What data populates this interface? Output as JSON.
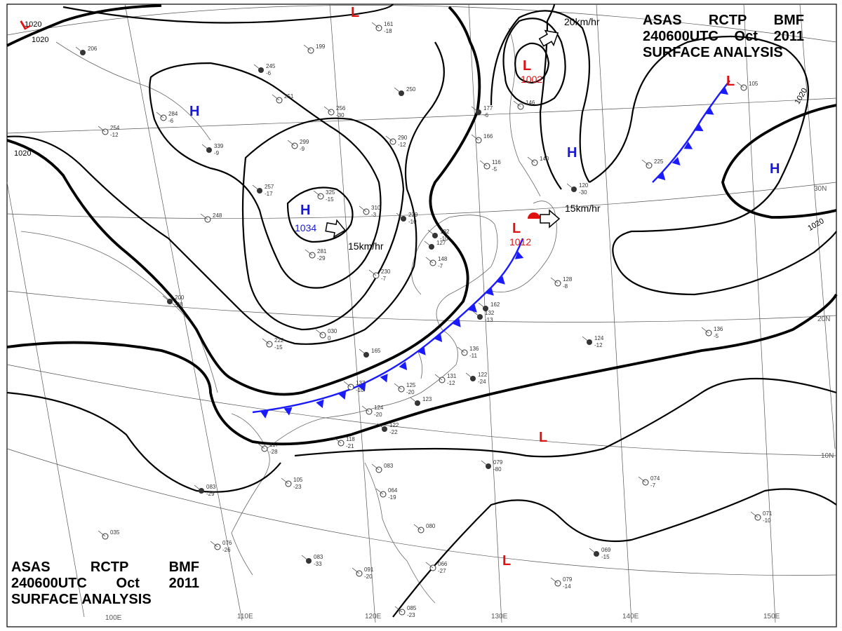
{
  "header": {
    "line1": [
      "ASAS",
      "RCTP",
      "BMF"
    ],
    "line2": [
      "240600UTC",
      "Oct",
      "2011"
    ],
    "line3": "SURFACE ANALYSIS"
  },
  "colors": {
    "high": "#1a1ad6",
    "low": "#e01010",
    "front": "#1a1aff",
    "isobar": "#000000"
  },
  "latitude_labels": [
    "30N",
    "20N",
    "10N"
  ],
  "longitude_labels": [
    "100E",
    "110E",
    "120E",
    "130E",
    "140E",
    "150E"
  ],
  "isobar_labels": [
    "1020",
    "1020",
    "1020",
    "1020",
    "1020"
  ],
  "highs": [
    {
      "label": "H",
      "value": ""
    },
    {
      "label": "H",
      "value": "1034"
    },
    {
      "label": "H",
      "value": ""
    },
    {
      "label": "H",
      "value": ""
    }
  ],
  "lows": [
    {
      "label": "L",
      "value": ""
    },
    {
      "label": "L",
      "value": ""
    },
    {
      "label": "L",
      "value": "1002"
    },
    {
      "label": "L",
      "value": "1012"
    },
    {
      "label": "L",
      "value": ""
    },
    {
      "label": "L",
      "value": ""
    },
    {
      "label": "L",
      "value": ""
    }
  ],
  "motions": [
    "15km/hr",
    "20km/hr",
    "15km/hr"
  ],
  "stations": [
    {
      "t": "206",
      "d": ""
    },
    {
      "t": "199",
      "d": ""
    },
    {
      "t": "161",
      "d": "-18"
    },
    {
      "t": "245",
      "d": "-6"
    },
    {
      "t": "284",
      "d": "-6"
    },
    {
      "t": "251",
      "d": ""
    },
    {
      "t": "250",
      "d": ""
    },
    {
      "t": "256",
      "d": "-30"
    },
    {
      "t": "254",
      "d": "-12"
    },
    {
      "t": "339",
      "d": "-9"
    },
    {
      "t": "299",
      "d": "-9"
    },
    {
      "t": "290",
      "d": "-12"
    },
    {
      "t": "257",
      "d": "-17"
    },
    {
      "t": "325",
      "d": "-15"
    },
    {
      "t": "310",
      "d": "-3"
    },
    {
      "t": "229",
      "d": "-10"
    },
    {
      "t": "248",
      "d": ""
    },
    {
      "t": "281",
      "d": "-29"
    },
    {
      "t": "182",
      "d": "-10"
    },
    {
      "t": "148",
      "d": "-7"
    },
    {
      "t": "230",
      "d": "-7"
    },
    {
      "t": "200",
      "d": "-28"
    },
    {
      "t": "030",
      "d": "0"
    },
    {
      "t": "222",
      "d": "-15"
    },
    {
      "t": "165",
      "d": ""
    },
    {
      "t": "136",
      "d": "-11"
    },
    {
      "t": "131",
      "d": "-12"
    },
    {
      "t": "122",
      "d": "-24"
    },
    {
      "t": "137",
      "d": "-10"
    },
    {
      "t": "125",
      "d": "-20"
    },
    {
      "t": "123",
      "d": ""
    },
    {
      "t": "117",
      "d": "-28"
    },
    {
      "t": "118",
      "d": "-21"
    },
    {
      "t": "122",
      "d": "-22"
    },
    {
      "t": "124",
      "d": "-20"
    },
    {
      "t": "105",
      "d": "-23"
    },
    {
      "t": "083",
      "d": "-29"
    },
    {
      "t": "083",
      "d": ""
    },
    {
      "t": "064",
      "d": "-19"
    },
    {
      "t": "079",
      "d": "-80"
    },
    {
      "t": "074",
      "d": "-7"
    },
    {
      "t": "076",
      "d": "-26"
    },
    {
      "t": "083",
      "d": "-33"
    },
    {
      "t": "091",
      "d": "-20"
    },
    {
      "t": "066",
      "d": "-27"
    },
    {
      "t": "069",
      "d": "-15"
    },
    {
      "t": "079",
      "d": "-14"
    },
    {
      "t": "071",
      "d": "-10"
    },
    {
      "t": "124",
      "d": "-12"
    },
    {
      "t": "136",
      "d": "-5"
    },
    {
      "t": "128",
      "d": "-8"
    },
    {
      "t": "162",
      "d": ""
    },
    {
      "t": "105",
      "d": ""
    },
    {
      "t": "225",
      "d": ""
    },
    {
      "t": "127",
      "d": ""
    },
    {
      "t": "116",
      "d": "-5"
    },
    {
      "t": "166",
      "d": ""
    },
    {
      "t": "177",
      "d": "-6"
    },
    {
      "t": "146",
      "d": ""
    },
    {
      "t": "140",
      "d": ""
    },
    {
      "t": "120",
      "d": "-30"
    },
    {
      "t": "085",
      "d": "-23"
    },
    {
      "t": "035",
      "d": ""
    },
    {
      "t": "132",
      "d": "-13"
    },
    {
      "t": "080",
      "d": ""
    }
  ]
}
